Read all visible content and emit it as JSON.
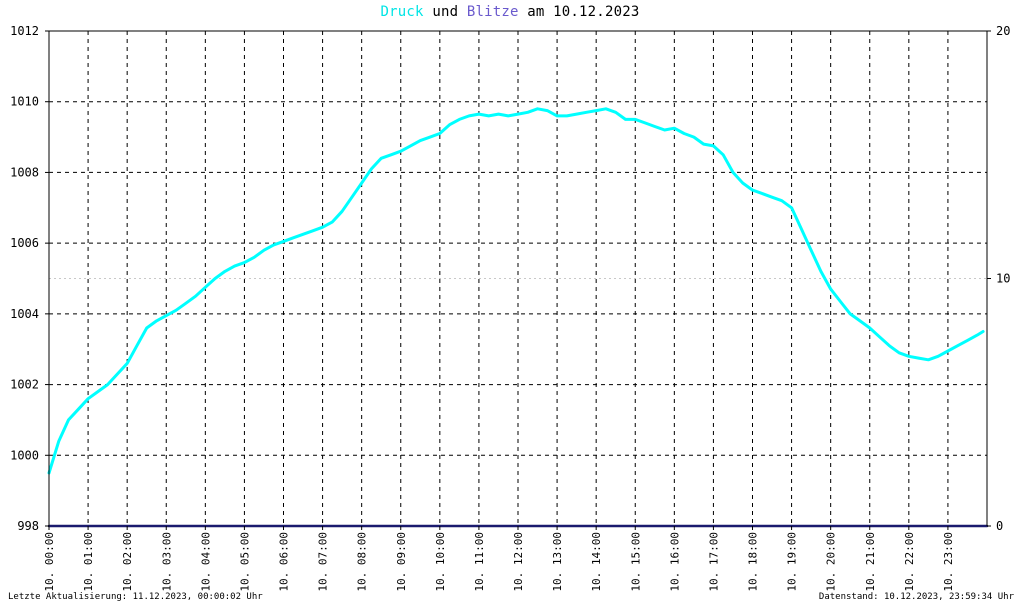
{
  "title": {
    "druck": "Druck",
    "und": "und",
    "blitze": "Blitze",
    "am_date": "am 10.12.2023"
  },
  "footer": {
    "left": "Letzte Aktualisierung: 11.12.2023, 00:00:02 Uhr",
    "right": "Datenstand: 10.12.2023, 23:59:34 Uhr"
  },
  "colors": {
    "druck": "#00ffff",
    "druck_title": "#00e5e5",
    "blitze": "#6a5acd",
    "blitze_line": "#1a1a6e",
    "grid": "#000000",
    "background": "#ffffff"
  },
  "chart_data": {
    "type": "line",
    "title": "Druck und Blitze am 10.12.2023",
    "xlabel": "",
    "ylabel": "",
    "x_range": [
      0,
      24
    ],
    "x_ticks": [
      {
        "pos": 0,
        "label": "10. 00:00"
      },
      {
        "pos": 1,
        "label": "10. 01:00"
      },
      {
        "pos": 2,
        "label": "10. 02:00"
      },
      {
        "pos": 3,
        "label": "10. 03:00"
      },
      {
        "pos": 4,
        "label": "10. 04:00"
      },
      {
        "pos": 5,
        "label": "10. 05:00"
      },
      {
        "pos": 6,
        "label": "10. 06:00"
      },
      {
        "pos": 7,
        "label": "10. 07:00"
      },
      {
        "pos": 8,
        "label": "10. 08:00"
      },
      {
        "pos": 9,
        "label": "10. 09:00"
      },
      {
        "pos": 10,
        "label": "10. 10:00"
      },
      {
        "pos": 11,
        "label": "10. 11:00"
      },
      {
        "pos": 12,
        "label": "10. 12:00"
      },
      {
        "pos": 13,
        "label": "10. 13:00"
      },
      {
        "pos": 14,
        "label": "10. 14:00"
      },
      {
        "pos": 15,
        "label": "10. 15:00"
      },
      {
        "pos": 16,
        "label": "10. 16:00"
      },
      {
        "pos": 17,
        "label": "10. 17:00"
      },
      {
        "pos": 18,
        "label": "10. 18:00"
      },
      {
        "pos": 19,
        "label": "10. 19:00"
      },
      {
        "pos": 20,
        "label": "10. 20:00"
      },
      {
        "pos": 21,
        "label": "10. 21:00"
      },
      {
        "pos": 22,
        "label": "10. 22:00"
      },
      {
        "pos": 23,
        "label": "10. 23:00"
      }
    ],
    "ylim_left": [
      998,
      1012
    ],
    "y_ticks_left": [
      "998",
      "1000",
      "1002",
      "1004",
      "1006",
      "1008",
      "1010",
      "1012"
    ],
    "ylim_right": [
      0,
      20
    ],
    "y_ticks_right": [
      "0",
      "10",
      "20"
    ],
    "grid": true,
    "series": [
      {
        "name": "Druck",
        "axis": "left",
        "color": "#00ffff",
        "x": [
          0.0,
          0.25,
          0.5,
          0.75,
          1.0,
          1.25,
          1.5,
          1.75,
          2.0,
          2.25,
          2.5,
          2.75,
          3.0,
          3.25,
          3.5,
          3.75,
          4.0,
          4.25,
          4.5,
          4.75,
          5.0,
          5.25,
          5.5,
          5.75,
          6.0,
          6.25,
          6.5,
          6.75,
          7.0,
          7.25,
          7.5,
          7.75,
          8.0,
          8.25,
          8.5,
          8.75,
          9.0,
          9.25,
          9.5,
          9.75,
          10.0,
          10.25,
          10.5,
          10.75,
          11.0,
          11.25,
          11.5,
          11.75,
          12.0,
          12.25,
          12.5,
          12.75,
          13.0,
          13.25,
          13.5,
          13.75,
          14.0,
          14.25,
          14.5,
          14.75,
          15.0,
          15.25,
          15.5,
          15.75,
          16.0,
          16.25,
          16.5,
          16.75,
          17.0,
          17.25,
          17.5,
          17.75,
          18.0,
          18.25,
          18.5,
          18.75,
          19.0,
          19.25,
          19.5,
          19.75,
          20.0,
          20.25,
          20.5,
          20.75,
          21.0,
          21.25,
          21.5,
          21.75,
          22.0,
          22.25,
          22.5,
          22.75,
          23.0,
          23.25,
          23.5,
          23.75,
          23.9
        ],
        "values": [
          999.5,
          1000.4,
          1001.0,
          1001.3,
          1001.6,
          1001.8,
          1002.0,
          1002.3,
          1002.6,
          1003.1,
          1003.6,
          1003.8,
          1003.95,
          1004.1,
          1004.3,
          1004.5,
          1004.75,
          1005.0,
          1005.2,
          1005.35,
          1005.45,
          1005.6,
          1005.8,
          1005.95,
          1006.05,
          1006.15,
          1006.25,
          1006.35,
          1006.45,
          1006.6,
          1006.9,
          1007.3,
          1007.7,
          1008.1,
          1008.4,
          1008.5,
          1008.6,
          1008.75,
          1008.9,
          1009.0,
          1009.1,
          1009.35,
          1009.5,
          1009.6,
          1009.65,
          1009.6,
          1009.65,
          1009.6,
          1009.65,
          1009.7,
          1009.8,
          1009.75,
          1009.6,
          1009.6,
          1009.65,
          1009.7,
          1009.75,
          1009.8,
          1009.7,
          1009.5,
          1009.5,
          1009.4,
          1009.3,
          1009.2,
          1009.25,
          1009.1,
          1009.0,
          1008.8,
          1008.75,
          1008.5,
          1008.0,
          1007.7,
          1007.5,
          1007.4,
          1007.3,
          1007.2,
          1007.0,
          1006.4,
          1005.8,
          1005.2,
          1004.7,
          1004.35,
          1004.0,
          1003.8,
          1003.6,
          1003.35,
          1003.1,
          1002.9,
          1002.8,
          1002.75,
          1002.7,
          1002.8,
          1002.95,
          1003.1,
          1003.25,
          1003.4,
          1003.5
        ]
      },
      {
        "name": "Blitze",
        "axis": "right",
        "color": "#1a1a6e",
        "x": [
          0,
          24
        ],
        "values": [
          0,
          0
        ]
      }
    ]
  }
}
